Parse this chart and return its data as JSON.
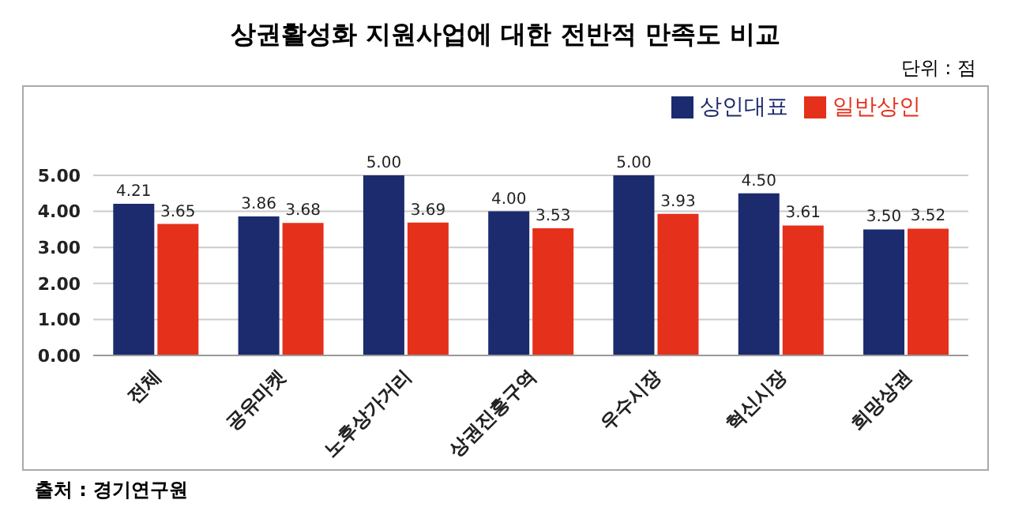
{
  "chart_data": {
    "type": "bar",
    "title": "상권활성화 지원사업에 대한 전반적 만족도 비교",
    "subtitle": "단위 : 점",
    "annotations": [
      "출처 : 경기연구원"
    ],
    "categories": [
      "전체",
      "공유마켓",
      "노후상가거리",
      "상권진흥구역",
      "우수시장",
      "혁신시장",
      "희망상권"
    ],
    "series": [
      {
        "name": "상인대표",
        "color": "#1c2a6e",
        "values": [
          4.21,
          3.86,
          5,
          4,
          5,
          4.5,
          3.5
        ],
        "value_labels": [
          "4.21",
          "3.86",
          "5.00",
          "4.00",
          "5.00",
          "4.50",
          "3.50"
        ]
      },
      {
        "name": "일반상인",
        "color": "#e5301c",
        "values": [
          3.65,
          3.68,
          3.69,
          3.53,
          3.93,
          3.61,
          3.52
        ],
        "value_labels": [
          "3.65",
          "3.68",
          "3.69",
          "3.53",
          "3.93",
          "3.61",
          "3.52"
        ]
      }
    ],
    "ylim": [
      0,
      5
    ],
    "yticks": [
      {
        "value": 0,
        "label": "0.00"
      },
      {
        "value": 1,
        "label": "1.00"
      },
      {
        "value": 2,
        "label": "2.00"
      },
      {
        "value": 3,
        "label": "3.00"
      },
      {
        "value": 4,
        "label": "4.00"
      },
      {
        "value": 5,
        "label": "5.00"
      }
    ],
    "grid": "y",
    "legend": "top right"
  }
}
